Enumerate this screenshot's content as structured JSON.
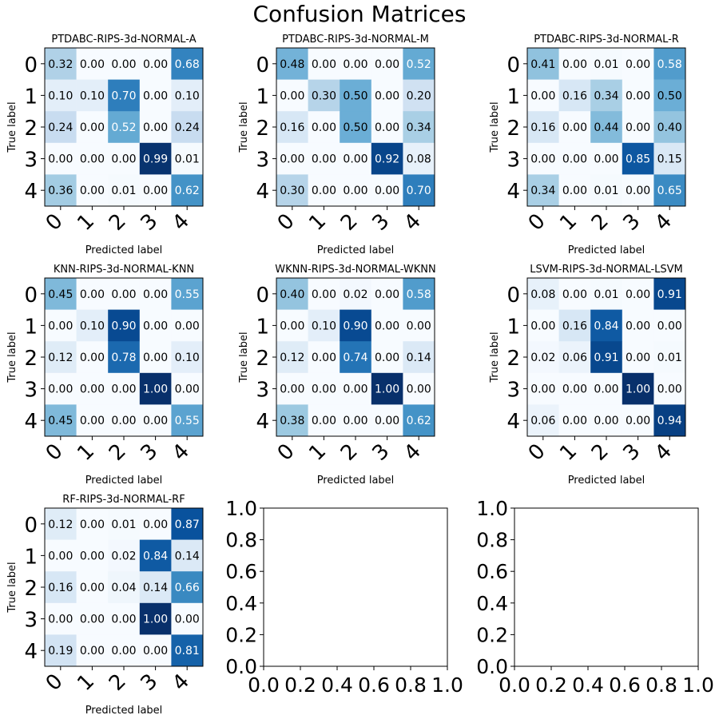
{
  "figure": {
    "title": "Confusion Matrices"
  },
  "chart_data": [
    {
      "type": "heatmap",
      "title": "PTDABC-RIPS-3d-NORMAL-A",
      "xlabel": "Predicted label",
      "ylabel": "True label",
      "x_ticks": [
        "0",
        "1",
        "2",
        "3",
        "4"
      ],
      "y_ticks": [
        "0",
        "1",
        "2",
        "3",
        "4"
      ],
      "colormap": "Blues",
      "vmin": 0,
      "vmax": 1,
      "values": [
        [
          "0.32",
          "0.00",
          "0.00",
          "0.00",
          "0.68"
        ],
        [
          "0.10",
          "0.10",
          "0.70",
          "0.00",
          "0.10"
        ],
        [
          "0.24",
          "0.00",
          "0.52",
          "0.00",
          "0.24"
        ],
        [
          "0.00",
          "0.00",
          "0.00",
          "0.99",
          "0.01"
        ],
        [
          "0.36",
          "0.00",
          "0.01",
          "0.00",
          "0.62"
        ]
      ]
    },
    {
      "type": "heatmap",
      "title": "PTDABC-RIPS-3d-NORMAL-M",
      "xlabel": "Predicted label",
      "ylabel": "True label",
      "x_ticks": [
        "0",
        "1",
        "2",
        "3",
        "4"
      ],
      "y_ticks": [
        "0",
        "1",
        "2",
        "3",
        "4"
      ],
      "colormap": "Blues",
      "vmin": 0,
      "vmax": 1,
      "values": [
        [
          "0.48",
          "0.00",
          "0.00",
          "0.00",
          "0.52"
        ],
        [
          "0.00",
          "0.30",
          "0.50",
          "0.00",
          "0.20"
        ],
        [
          "0.16",
          "0.00",
          "0.50",
          "0.00",
          "0.34"
        ],
        [
          "0.00",
          "0.00",
          "0.00",
          "0.92",
          "0.08"
        ],
        [
          "0.30",
          "0.00",
          "0.00",
          "0.00",
          "0.70"
        ]
      ]
    },
    {
      "type": "heatmap",
      "title": "PTDABC-RIPS-3d-NORMAL-R",
      "xlabel": "Predicted label",
      "ylabel": "True label",
      "x_ticks": [
        "0",
        "1",
        "2",
        "3",
        "4"
      ],
      "y_ticks": [
        "0",
        "1",
        "2",
        "3",
        "4"
      ],
      "colormap": "Blues",
      "vmin": 0,
      "vmax": 1,
      "values": [
        [
          "0.41",
          "0.00",
          "0.01",
          "0.00",
          "0.58"
        ],
        [
          "0.00",
          "0.16",
          "0.34",
          "0.00",
          "0.50"
        ],
        [
          "0.16",
          "0.00",
          "0.44",
          "0.00",
          "0.40"
        ],
        [
          "0.00",
          "0.00",
          "0.00",
          "0.85",
          "0.15"
        ],
        [
          "0.34",
          "0.00",
          "0.01",
          "0.00",
          "0.65"
        ]
      ]
    },
    {
      "type": "heatmap",
      "title": "KNN-RIPS-3d-NORMAL-KNN",
      "xlabel": "Predicted label",
      "ylabel": "True label",
      "x_ticks": [
        "0",
        "1",
        "2",
        "3",
        "4"
      ],
      "y_ticks": [
        "0",
        "1",
        "2",
        "3",
        "4"
      ],
      "colormap": "Blues",
      "vmin": 0,
      "vmax": 1,
      "values": [
        [
          "0.45",
          "0.00",
          "0.00",
          "0.00",
          "0.55"
        ],
        [
          "0.00",
          "0.10",
          "0.90",
          "0.00",
          "0.00"
        ],
        [
          "0.12",
          "0.00",
          "0.78",
          "0.00",
          "0.10"
        ],
        [
          "0.00",
          "0.00",
          "0.00",
          "1.00",
          "0.00"
        ],
        [
          "0.45",
          "0.00",
          "0.00",
          "0.00",
          "0.55"
        ]
      ]
    },
    {
      "type": "heatmap",
      "title": "WKNN-RIPS-3d-NORMAL-WKNN",
      "xlabel": "Predicted label",
      "ylabel": "True label",
      "x_ticks": [
        "0",
        "1",
        "2",
        "3",
        "4"
      ],
      "y_ticks": [
        "0",
        "1",
        "2",
        "3",
        "4"
      ],
      "colormap": "Blues",
      "vmin": 0,
      "vmax": 1,
      "values": [
        [
          "0.40",
          "0.00",
          "0.02",
          "0.00",
          "0.58"
        ],
        [
          "0.00",
          "0.10",
          "0.90",
          "0.00",
          "0.00"
        ],
        [
          "0.12",
          "0.00",
          "0.74",
          "0.00",
          "0.14"
        ],
        [
          "0.00",
          "0.00",
          "0.00",
          "1.00",
          "0.00"
        ],
        [
          "0.38",
          "0.00",
          "0.00",
          "0.00",
          "0.62"
        ]
      ]
    },
    {
      "type": "heatmap",
      "title": "LSVM-RIPS-3d-NORMAL-LSVM",
      "xlabel": "Predicted label",
      "ylabel": "True label",
      "x_ticks": [
        "0",
        "1",
        "2",
        "3",
        "4"
      ],
      "y_ticks": [
        "0",
        "1",
        "2",
        "3",
        "4"
      ],
      "colormap": "Blues",
      "vmin": 0,
      "vmax": 1,
      "values": [
        [
          "0.08",
          "0.00",
          "0.01",
          "0.00",
          "0.91"
        ],
        [
          "0.00",
          "0.16",
          "0.84",
          "0.00",
          "0.00"
        ],
        [
          "0.02",
          "0.06",
          "0.91",
          "0.00",
          "0.01"
        ],
        [
          "0.00",
          "0.00",
          "0.00",
          "1.00",
          "0.00"
        ],
        [
          "0.06",
          "0.00",
          "0.00",
          "0.00",
          "0.94"
        ]
      ]
    },
    {
      "type": "heatmap",
      "title": "RF-RIPS-3d-NORMAL-RF",
      "xlabel": "Predicted label",
      "ylabel": "True label",
      "x_ticks": [
        "0",
        "1",
        "2",
        "3",
        "4"
      ],
      "y_ticks": [
        "0",
        "1",
        "2",
        "3",
        "4"
      ],
      "colormap": "Blues",
      "vmin": 0,
      "vmax": 1,
      "values": [
        [
          "0.12",
          "0.00",
          "0.01",
          "0.00",
          "0.87"
        ],
        [
          "0.00",
          "0.00",
          "0.02",
          "0.84",
          "0.14"
        ],
        [
          "0.16",
          "0.00",
          "0.04",
          "0.14",
          "0.66"
        ],
        [
          "0.00",
          "0.00",
          "0.00",
          "1.00",
          "0.00"
        ],
        [
          "0.19",
          "0.00",
          "0.00",
          "0.00",
          "0.81"
        ]
      ]
    },
    {
      "type": "scatter",
      "title": "",
      "xlabel": "",
      "ylabel": "",
      "xlim": [
        0,
        1
      ],
      "ylim": [
        0,
        1
      ],
      "x_ticks": [
        "0.0",
        "0.2",
        "0.4",
        "0.6",
        "0.8",
        "1.0"
      ],
      "y_ticks": [
        "0.0",
        "0.2",
        "0.4",
        "0.6",
        "0.8",
        "1.0"
      ],
      "series": []
    },
    {
      "type": "scatter",
      "title": "",
      "xlabel": "",
      "ylabel": "",
      "xlim": [
        0,
        1
      ],
      "ylim": [
        0,
        1
      ],
      "x_ticks": [
        "0.0",
        "0.2",
        "0.4",
        "0.6",
        "0.8",
        "1.0"
      ],
      "y_ticks": [
        "0.0",
        "0.2",
        "0.4",
        "0.6",
        "0.8",
        "1.0"
      ],
      "series": []
    }
  ]
}
